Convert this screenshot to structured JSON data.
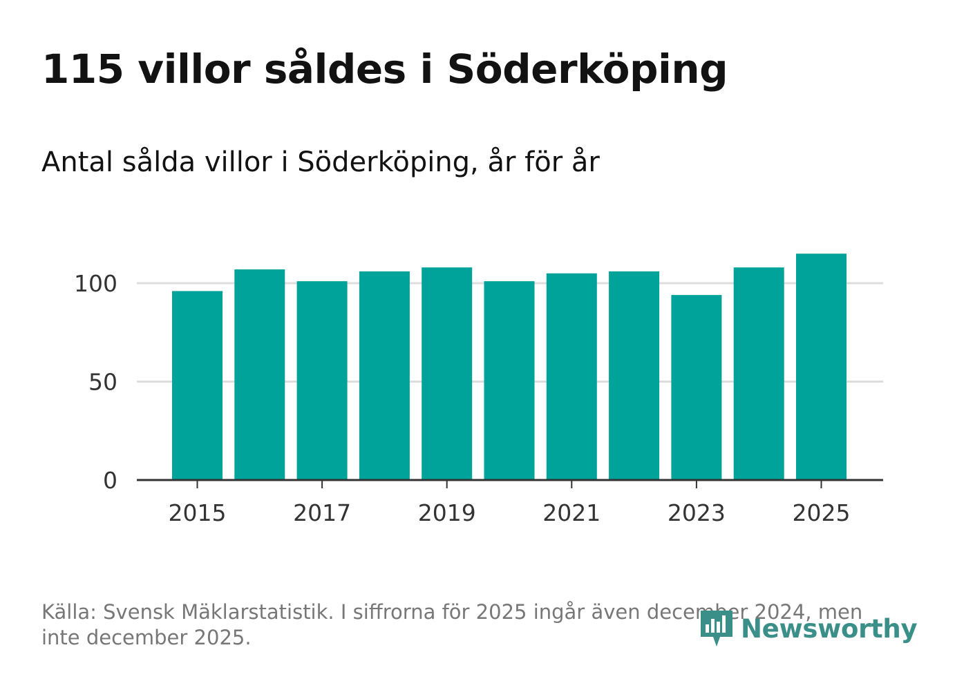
{
  "title": "115 villor såldes i Söderköping",
  "subtitle": "Antal sålda villor i Söderköping, år för år",
  "source": "Källa: Svensk Mäklarstatistik. I siffrorna för 2025 ingår även december 2024, men inte december 2025.",
  "logo_text": "Newsworthy",
  "colors": {
    "bar": "#00a39a",
    "grid": "#dddddd",
    "axis": "#333333",
    "logo": "#3a8f88"
  },
  "chart_data": {
    "type": "bar",
    "title": "115 villor såldes i Söderköping",
    "subtitle": "Antal sålda villor i Söderköping, år för år",
    "categories": [
      "2015",
      "2016",
      "2017",
      "2018",
      "2019",
      "2020",
      "2021",
      "2022",
      "2023",
      "2024",
      "2025"
    ],
    "values": [
      96,
      107,
      101,
      106,
      108,
      101,
      105,
      106,
      94,
      108,
      115
    ],
    "x_tick_labels": [
      "2015",
      "2017",
      "2019",
      "2021",
      "2023",
      "2025"
    ],
    "y_ticks": [
      0,
      50,
      100
    ],
    "ylim": [
      0,
      120
    ],
    "xlabel": "",
    "ylabel": "",
    "grid": true
  }
}
